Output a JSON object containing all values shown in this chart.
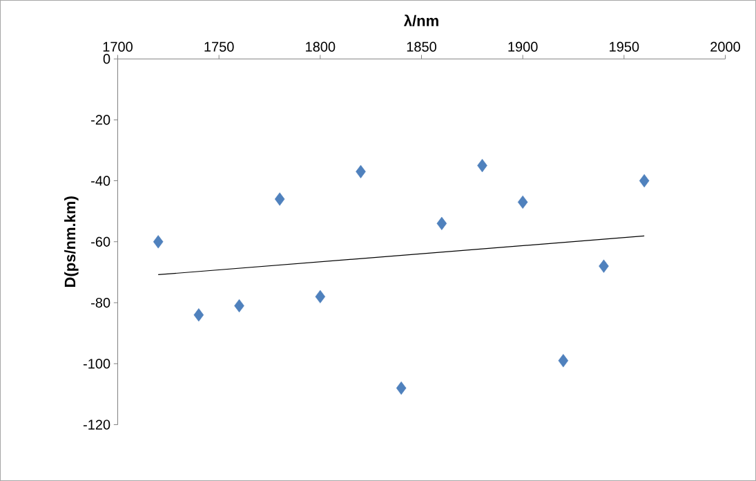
{
  "chart_data": {
    "type": "scatter",
    "xlabel": "λ/nm",
    "ylabel": "D(ps/nm.km)",
    "xlim": [
      1700,
      2000
    ],
    "ylim": [
      -120,
      0
    ],
    "xticks": [
      1700,
      1750,
      1800,
      1850,
      1900,
      1950,
      2000
    ],
    "yticks": [
      -120,
      -100,
      -80,
      -60,
      -40,
      -20,
      0
    ],
    "marker": "diamond",
    "series": [
      {
        "color": "#4f81bd",
        "x": [
          1720,
          1740,
          1760,
          1780,
          1800,
          1820,
          1840,
          1860,
          1880,
          1900,
          1920,
          1940,
          1960
        ],
        "values": [
          -60,
          -84,
          -81,
          -46,
          -78,
          -37,
          -108,
          -54,
          -35,
          -47,
          -99,
          -68,
          -40
        ]
      },
      {
        "type": "line",
        "color": "#000000",
        "marker": "none",
        "x": [
          1720,
          1960
        ],
        "values": [
          -70.8,
          -58.1
        ]
      }
    ]
  }
}
